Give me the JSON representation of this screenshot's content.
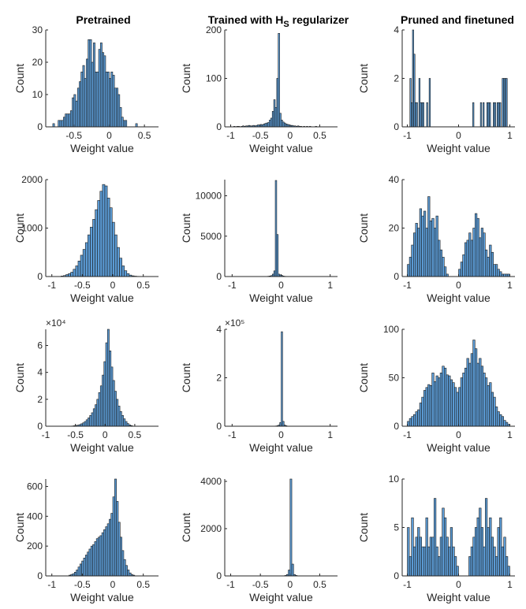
{
  "style": {
    "bar_color": "#5b9bd5",
    "edge_color": "#1a1a1a"
  },
  "column_titles": [
    {
      "id": "t0",
      "parts": [
        {
          "text": "Pretrained"
        }
      ]
    },
    {
      "id": "t1",
      "parts": [
        {
          "text": "Trained with H"
        },
        {
          "text": "S",
          "sub": true
        },
        {
          "text": " regularizer"
        }
      ]
    },
    {
      "id": "t2",
      "parts": [
        {
          "text": "Pruned and finetuned"
        }
      ]
    }
  ],
  "chart_data": [
    {
      "type": "bar",
      "xlabel": "Weight value",
      "ylabel": "Count",
      "xlim": [
        -0.9,
        0.7
      ],
      "ylim": [
        0,
        30
      ],
      "xticks": [
        -0.5,
        0,
        0.5
      ],
      "xticklabels": [
        "-0.5",
        "0",
        "0.5"
      ],
      "yticks": [
        0,
        10,
        20,
        30
      ],
      "yticklabels": [
        "0",
        "10",
        "20",
        "30"
      ],
      "bins": {
        "start": -0.8,
        "width": 0.025,
        "values": [
          1,
          0,
          0,
          2,
          2,
          2,
          3,
          4,
          4,
          4,
          5,
          9,
          10,
          8,
          12,
          14,
          17,
          19,
          15,
          21,
          27,
          27,
          20,
          26,
          17,
          17,
          24,
          26,
          23,
          22,
          17,
          17,
          15,
          17,
          16,
          12,
          12,
          10,
          6,
          3,
          2,
          2,
          0,
          0,
          0,
          0,
          0,
          1
        ]
      }
    },
    {
      "type": "bar",
      "xlabel": "Weight value",
      "ylabel": "Count",
      "xlim": [
        -1.1,
        0.8
      ],
      "ylim": [
        0,
        200
      ],
      "xticks": [
        -1,
        -0.5,
        0,
        0.5
      ],
      "xticklabels": [
        "-1",
        "-0.5",
        "0",
        "0.5"
      ],
      "yticks": [
        0,
        100,
        200
      ],
      "yticklabels": [
        "0",
        "100",
        "200"
      ],
      "bins": {
        "start": -1.0,
        "width": 0.025,
        "values": [
          0,
          0,
          1,
          0,
          1,
          1,
          0,
          1,
          2,
          1,
          2,
          2,
          3,
          2,
          2,
          3,
          2,
          3,
          4,
          4,
          5,
          4,
          6,
          7,
          8,
          9,
          14,
          18,
          32,
          56,
          40,
          100,
          193,
          28,
          14,
          10,
          8,
          6,
          5,
          4,
          3,
          3,
          2,
          2,
          1,
          2,
          1,
          1,
          0,
          1,
          0,
          1,
          0,
          1,
          0,
          0,
          0,
          1,
          0,
          0,
          0,
          0,
          0,
          0,
          0,
          0,
          0,
          0,
          0,
          0,
          0,
          0
        ]
      }
    },
    {
      "type": "bar",
      "xlabel": "Weight value",
      "ylabel": "Count",
      "xlim": [
        -1.1,
        1.1
      ],
      "ylim": [
        0,
        4
      ],
      "xticks": [
        -1,
        0,
        1
      ],
      "xticklabels": [
        "-1",
        "0",
        "1"
      ],
      "yticks": [
        0,
        2,
        4
      ],
      "yticklabels": [
        "0",
        "2",
        "4"
      ],
      "bins": {
        "start": -0.95,
        "width": 0.025,
        "values": [
          2,
          1,
          4,
          3,
          1,
          1,
          0,
          2,
          1,
          1,
          1,
          0,
          0,
          1,
          0,
          2,
          0,
          0,
          0,
          0,
          0,
          0,
          0,
          0,
          0,
          0,
          0,
          0,
          0,
          0,
          0,
          0,
          0,
          0,
          0,
          0,
          0,
          0,
          0,
          0,
          0,
          0,
          0,
          0,
          0,
          0,
          0,
          0,
          0,
          1,
          0,
          0,
          0,
          0,
          0,
          1,
          0,
          1,
          0,
          0,
          1,
          1,
          1,
          0,
          0,
          1,
          1,
          0,
          1,
          1,
          1,
          0,
          2,
          2,
          2,
          2,
          0
        ]
      }
    },
    {
      "type": "bar",
      "xlabel": "Weight value",
      "ylabel": "Count",
      "xlim": [
        -1.1,
        0.75
      ],
      "ylim": [
        0,
        2000
      ],
      "xticks": [
        -1,
        -0.5,
        0,
        0.5
      ],
      "xticklabels": [
        "-1",
        "-0.5",
        "0",
        "0.5"
      ],
      "yticks": [
        0,
        1000,
        2000
      ],
      "yticklabels": [
        "0",
        "1000",
        "2000"
      ],
      "bins": {
        "start": -0.85,
        "width": 0.04,
        "values": [
          10,
          20,
          40,
          60,
          90,
          150,
          220,
          320,
          440,
          560,
          700,
          860,
          1020,
          1180,
          1380,
          1570,
          1760,
          1900,
          1870,
          1620,
          1420,
          1120,
          860,
          600,
          380,
          220,
          120,
          60,
          30,
          15,
          8,
          4
        ]
      }
    },
    {
      "type": "bar",
      "xlabel": "Weight value",
      "ylabel": "Count",
      "xlim": [
        -1.15,
        1.15
      ],
      "ylim": [
        0,
        12000
      ],
      "xticks": [
        -1,
        0,
        1
      ],
      "xticklabels": [
        "-1",
        "0",
        "1"
      ],
      "yticks": [
        0,
        5000,
        10000
      ],
      "yticklabels": [
        "0",
        "5000",
        "10000"
      ],
      "bins": {
        "start": -0.3,
        "width": 0.03,
        "values": [
          20,
          40,
          70,
          120,
          300,
          700,
          11900,
          5200,
          300,
          200,
          150,
          60,
          30,
          20,
          10
        ]
      }
    },
    {
      "type": "bar",
      "xlabel": "Weight value",
      "ylabel": "Count",
      "xlim": [
        -1.1,
        1.1
      ],
      "ylim": [
        0,
        40
      ],
      "xticks": [
        -1,
        0,
        1
      ],
      "xticklabels": [
        "-1",
        "0",
        "1"
      ],
      "yticks": [
        0,
        20,
        40
      ],
      "yticklabels": [
        "0",
        "20",
        "40"
      ],
      "bins": {
        "start": -1.0,
        "width": 0.04,
        "values": [
          5,
          8,
          13,
          18,
          22,
          20,
          28,
          25,
          27,
          20,
          33,
          23,
          24,
          20,
          25,
          15,
          11,
          8,
          4,
          1,
          0,
          0,
          0,
          0,
          0,
          3,
          6,
          9,
          14,
          15,
          18,
          15,
          20,
          26,
          24,
          16,
          20,
          18,
          11,
          8,
          13,
          10,
          5,
          5,
          3,
          2,
          1,
          1,
          1,
          1
        ]
      }
    },
    {
      "type": "bar",
      "xlabel": "Weight value",
      "ylabel": "Count",
      "exponent_label": "×10⁴",
      "xlim": [
        -1.0,
        0.9
      ],
      "ylim": [
        0,
        7.2
      ],
      "xticks": [
        -1,
        -0.5,
        0,
        0.5
      ],
      "xticklabels": [
        "-1",
        "-0.5",
        "0",
        "0.5"
      ],
      "yticks": [
        0,
        2,
        4,
        6
      ],
      "yticklabels": [
        "0",
        "2",
        "4",
        "6"
      ],
      "bins": {
        "start": -0.56,
        "width": 0.03,
        "values": [
          0.02,
          0.04,
          0.06,
          0.08,
          0.12,
          0.18,
          0.25,
          0.35,
          0.48,
          0.62,
          0.8,
          1.0,
          1.3,
          1.6,
          2.0,
          2.5,
          3.0,
          3.8,
          4.8,
          6.2,
          7.2,
          5.6,
          4.4,
          3.4,
          2.6,
          2.0,
          1.5,
          1.1,
          0.8,
          0.55,
          0.35,
          0.2,
          0.1,
          0.05
        ]
      }
    },
    {
      "type": "bar",
      "xlabel": "Weight value",
      "ylabel": "Count",
      "exponent_label": "×10⁵",
      "xlim": [
        -1.15,
        1.15
      ],
      "ylim": [
        0,
        4
      ],
      "xticks": [
        -1,
        0,
        1
      ],
      "xticklabels": [
        "-1",
        "0",
        "1"
      ],
      "yticks": [
        0,
        2,
        4
      ],
      "yticklabels": [
        "0",
        "2",
        "4"
      ],
      "bins": {
        "start": -0.12,
        "width": 0.03,
        "values": [
          0.01,
          0.02,
          0.05,
          0.15,
          3.9,
          0.2,
          0.05,
          0.02
        ]
      }
    },
    {
      "type": "bar",
      "xlabel": "Weight value",
      "ylabel": "Count",
      "xlim": [
        -1.1,
        1.1
      ],
      "ylim": [
        0,
        100
      ],
      "xticks": [
        -1,
        0,
        1
      ],
      "xticklabels": [
        "-1",
        "0",
        "1"
      ],
      "yticks": [
        0,
        50,
        100
      ],
      "yticklabels": [
        "0",
        "50",
        "100"
      ],
      "bins": {
        "start": -1.0,
        "width": 0.04,
        "values": [
          5,
          8,
          10,
          12,
          15,
          17,
          24,
          30,
          37,
          40,
          43,
          42,
          55,
          46,
          52,
          50,
          55,
          62,
          60,
          53,
          52,
          48,
          45,
          40,
          35,
          40,
          50,
          55,
          60,
          70,
          65,
          75,
          89,
          80,
          65,
          70,
          62,
          55,
          50,
          42,
          45,
          35,
          30,
          20,
          15,
          12,
          10,
          6,
          4,
          2
        ]
      }
    },
    {
      "type": "bar",
      "xlabel": "Weight value",
      "ylabel": "Count",
      "xlim": [
        -1.1,
        0.75
      ],
      "ylim": [
        0,
        650
      ],
      "xticks": [
        -1,
        -0.5,
        0,
        0.5
      ],
      "xticklabels": [
        "-1",
        "-0.5",
        "0",
        "0.5"
      ],
      "yticks": [
        0,
        200,
        400,
        600
      ],
      "yticklabels": [
        "0",
        "200",
        "400",
        "600"
      ],
      "bins": {
        "start": -0.72,
        "width": 0.03,
        "values": [
          5,
          10,
          15,
          25,
          40,
          60,
          80,
          100,
          120,
          140,
          160,
          180,
          200,
          210,
          230,
          250,
          260,
          270,
          290,
          310,
          330,
          350,
          380,
          420,
          530,
          650,
          500,
          360,
          260,
          170,
          110,
          70,
          40,
          20,
          10,
          5
        ]
      }
    },
    {
      "type": "bar",
      "xlabel": "Weight value",
      "ylabel": "Count",
      "xlim": [
        -1.1,
        0.8
      ],
      "ylim": [
        0,
        4100
      ],
      "xticks": [
        -1,
        -0.5,
        0,
        0.5
      ],
      "xticklabels": [
        "-1",
        "-0.5",
        "0",
        "0.5"
      ],
      "yticks": [
        0,
        2000,
        4000
      ],
      "yticklabels": [
        "0",
        "2000",
        "4000"
      ],
      "bins": {
        "start": -0.09,
        "width": 0.03,
        "values": [
          20,
          60,
          250,
          4100,
          500,
          60,
          20
        ]
      }
    },
    {
      "type": "bar",
      "xlabel": "Weight value",
      "ylabel": "Count",
      "xlim": [
        -1.1,
        1.1
      ],
      "ylim": [
        0,
        10
      ],
      "xticks": [
        -1,
        0,
        1
      ],
      "xticklabels": [
        "-1",
        "0",
        "1"
      ],
      "yticks": [
        0,
        5,
        10
      ],
      "yticklabels": [
        "0",
        "5",
        "10"
      ],
      "bins": {
        "start": -1.0,
        "width": 0.04,
        "values": [
          5,
          2,
          6,
          3,
          4,
          5,
          4,
          3,
          3,
          6,
          3,
          4,
          4,
          8,
          3,
          2,
          4,
          7,
          6,
          4,
          3,
          5,
          3,
          2,
          1,
          0,
          0,
          0,
          0,
          0,
          2,
          3,
          4,
          5,
          6,
          7,
          5,
          3,
          8,
          5,
          6,
          4,
          3,
          2,
          5,
          6,
          3,
          4,
          2,
          1
        ]
      }
    }
  ]
}
